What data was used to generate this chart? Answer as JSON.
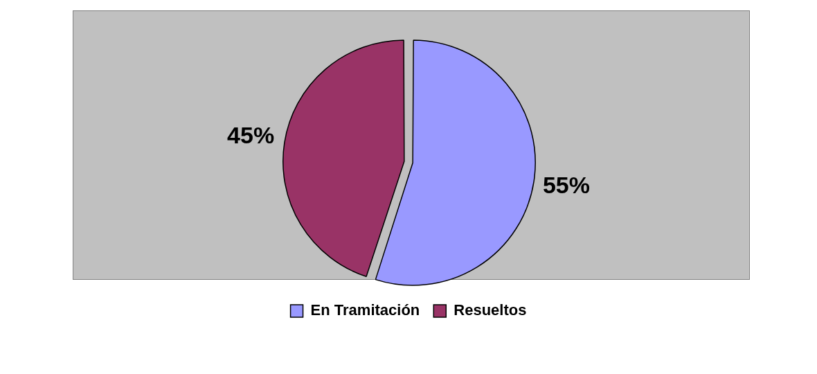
{
  "chart_data": {
    "type": "pie",
    "categories": [
      "En Tramitación",
      "Resueltos"
    ],
    "values": [
      55,
      45
    ],
    "colors": [
      "#9999ff",
      "#993366"
    ],
    "value_labels": [
      "55%",
      "45%"
    ],
    "legend": "bottom"
  }
}
